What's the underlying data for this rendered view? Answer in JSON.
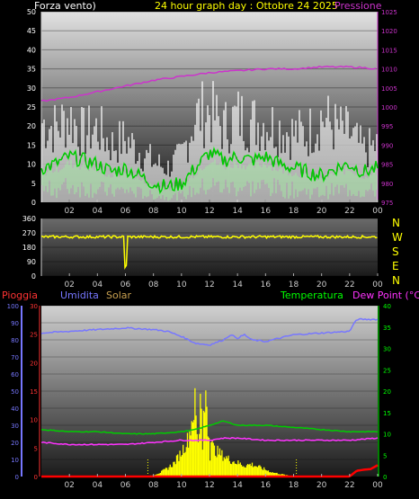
{
  "header": {
    "wind_label": "Forza vento)",
    "title": "24 hour graph day : Ottobre 24 2025",
    "pressure_label": "Pressione"
  },
  "compass": [
    "N",
    "W",
    "S",
    "E",
    "N"
  ],
  "bottom_labels": {
    "rain": "Pioggia",
    "humidity": "Umidita",
    "solar": "Solar",
    "temperature": "Temperatura",
    "dewpoint": "Dew Point (°C)"
  },
  "colors": {
    "wind_speed": "#ffffff",
    "wind_gust_avg": "#00cc00",
    "wind_band": "#b8f0b8",
    "pressure": "#cc33cc",
    "direction": "#ffff00",
    "rain": "#ff0000",
    "humidity": "#7777ff",
    "solar": "#ffff00",
    "temperature": "#00cc00",
    "dewpoint": "#ff33ff"
  },
  "chart_data": [
    {
      "type": "line",
      "x_ticks": [
        "02",
        "04",
        "06",
        "08",
        "10",
        "12",
        "14",
        "16",
        "18",
        "20",
        "22",
        "00"
      ],
      "y_left": {
        "ticks": [
          0,
          5,
          10,
          15,
          20,
          25,
          30,
          35,
          40,
          45,
          50
        ],
        "ylim": [
          0,
          50
        ]
      },
      "y_right": {
        "ticks": [
          975,
          980,
          985,
          990,
          995,
          1000,
          1005,
          1010,
          1015,
          1020,
          1025
        ],
        "ylim": [
          975,
          1025
        ]
      },
      "series": [
        {
          "key": "pressure",
          "axis": "right",
          "x": [
            0,
            2,
            4,
            6,
            8,
            10,
            12,
            14,
            16,
            18,
            20,
            22,
            23,
            24
          ],
          "values": [
            1001.5,
            1002.5,
            1004,
            1005.5,
            1007,
            1008,
            1009,
            1009.5,
            1010,
            1010,
            1010.5,
            1010.5,
            1010.3,
            1010
          ]
        },
        {
          "key": "wind_avg",
          "axis": "left",
          "x": [
            0,
            1,
            2,
            3,
            4,
            5,
            6,
            7,
            8,
            9,
            10,
            11,
            12,
            13,
            14,
            15,
            16,
            17,
            18,
            19,
            20,
            21,
            22,
            23,
            24
          ],
          "values": [
            9,
            10,
            12,
            11,
            10,
            8,
            9,
            7,
            5,
            4,
            5,
            9,
            13,
            11,
            12,
            11,
            12,
            10,
            9,
            8,
            7,
            9,
            10,
            8,
            9
          ]
        },
        {
          "key": "wind_speed_envelope",
          "axis": "left",
          "x": [
            0,
            1,
            2,
            3,
            4,
            5,
            6,
            7,
            8,
            9,
            10,
            11,
            12,
            13,
            14,
            15,
            16,
            17,
            18,
            19,
            20,
            21,
            22,
            23,
            24
          ],
          "values": [
            28,
            26,
            30,
            24,
            26,
            20,
            22,
            18,
            14,
            12,
            16,
            30,
            32,
            26,
            30,
            28,
            28,
            26,
            24,
            24,
            30,
            26,
            24,
            18,
            20
          ]
        }
      ]
    },
    {
      "type": "scatter",
      "x_ticks": [
        "02",
        "04",
        "06",
        "08",
        "10",
        "12",
        "14",
        "16",
        "18",
        "20",
        "22",
        "00"
      ],
      "y_left": {
        "ticks": [
          0,
          90,
          180,
          270,
          360
        ],
        "ylim": [
          0,
          360
        ]
      },
      "series": [
        {
          "key": "direction",
          "x": [
            0,
            2,
            4,
            5.5,
            6,
            6.5,
            8,
            10,
            12,
            14,
            16,
            18,
            19,
            20,
            22,
            24
          ],
          "values": [
            245,
            248,
            245,
            250,
            40,
            250,
            245,
            248,
            245,
            242,
            245,
            245,
            225,
            245,
            240,
            245
          ]
        }
      ]
    },
    {
      "type": "line",
      "x_ticks": [
        "02",
        "04",
        "06",
        "08",
        "10",
        "12",
        "14",
        "16",
        "18",
        "20",
        "22",
        "00"
      ],
      "y_left_humidity": {
        "ticks": [
          0,
          10,
          20,
          30,
          40,
          50,
          60,
          70,
          80,
          90,
          100
        ],
        "ylim": [
          0,
          100
        ]
      },
      "y_left_rain": {
        "ticks": [
          0,
          5,
          10,
          15,
          20,
          25,
          30
        ],
        "ylim": [
          0,
          30
        ]
      },
      "y_right": {
        "ticks": [
          0,
          5,
          10,
          15,
          20,
          25,
          30,
          35,
          40
        ],
        "ylim": [
          0,
          40
        ]
      },
      "series": [
        {
          "key": "humidity",
          "axis": "humidity",
          "x": [
            0,
            2,
            4,
            6,
            8,
            9,
            10,
            11,
            12,
            13,
            13.5,
            14,
            14.5,
            15,
            16,
            17,
            18,
            20,
            22,
            22.5,
            23,
            24
          ],
          "values": [
            84,
            85,
            86,
            87,
            86,
            85,
            82,
            78,
            77,
            80,
            83,
            81,
            83,
            80,
            79,
            81,
            83,
            84,
            85,
            92,
            92,
            92
          ]
        },
        {
          "key": "temperature",
          "axis": "right",
          "x": [
            0,
            2,
            4,
            6,
            8,
            10,
            11,
            12,
            13,
            14,
            16,
            18,
            20,
            22,
            24
          ],
          "values": [
            11,
            10.5,
            10.5,
            10,
            10,
            10.5,
            11,
            12,
            13,
            12,
            12,
            11.5,
            11,
            10.5,
            10.5
          ]
        },
        {
          "key": "dewpoint",
          "axis": "right",
          "x": [
            0,
            2,
            4,
            6,
            8,
            10,
            12,
            13,
            14,
            16,
            18,
            20,
            22,
            24
          ],
          "values": [
            8,
            7.5,
            7.5,
            7.5,
            8,
            8.5,
            8.5,
            9,
            9,
            8.5,
            8.5,
            8.5,
            8.5,
            9
          ]
        },
        {
          "key": "rain",
          "axis": "rain",
          "x": [
            0,
            22,
            22.5,
            23,
            23.5,
            24
          ],
          "values": [
            0,
            0,
            1,
            1.2,
            1.3,
            2
          ]
        },
        {
          "key": "solar",
          "axis": "humidity",
          "x": [
            7.5,
            8,
            8.5,
            9,
            9.5,
            10,
            10.5,
            11,
            11.2,
            11.4,
            11.6,
            11.8,
            12,
            12.3,
            12.6,
            13,
            13.5,
            14,
            14.5,
            15,
            15.5,
            16,
            16.5,
            17,
            17.5,
            18
          ],
          "values": [
            0,
            1,
            3,
            6,
            10,
            18,
            28,
            55,
            35,
            60,
            40,
            45,
            30,
            20,
            18,
            15,
            12,
            10,
            8,
            9,
            7,
            5,
            3,
            2,
            1,
            0
          ]
        }
      ]
    }
  ]
}
